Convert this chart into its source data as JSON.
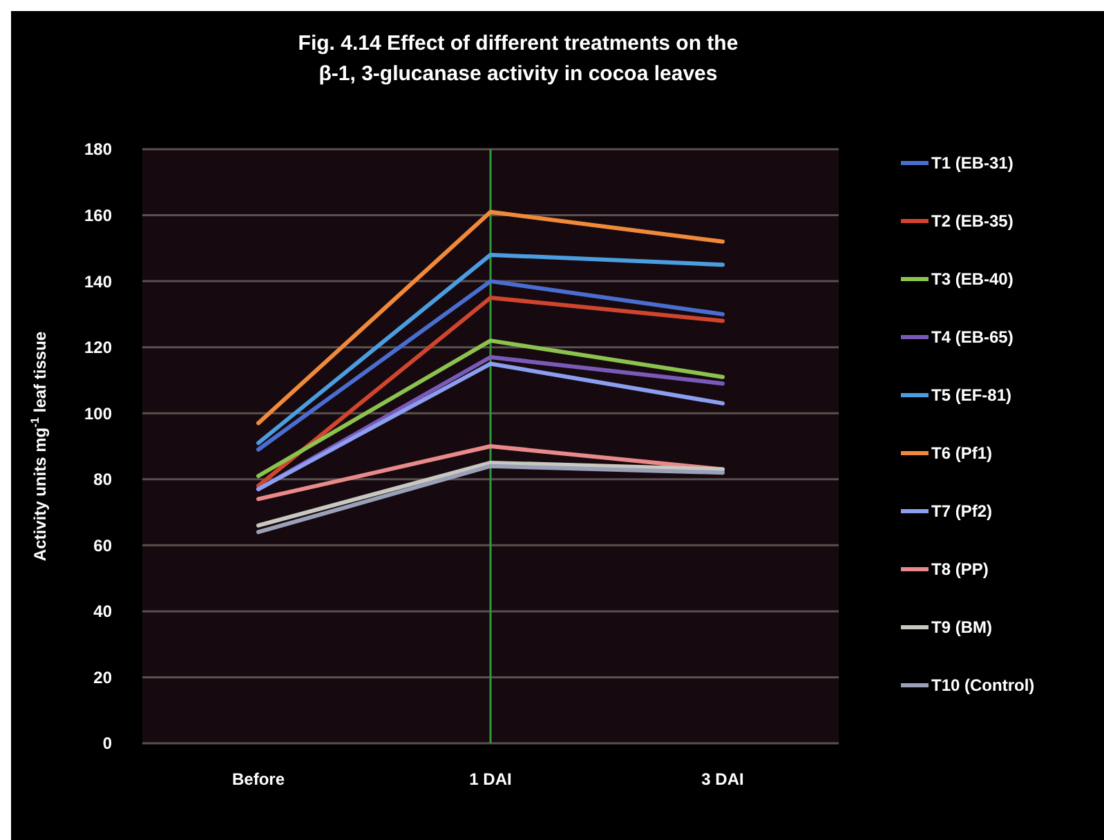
{
  "chart_data": {
    "type": "line",
    "title": "Fig. 4.14 Effect of different treatments on the β-1, 3-glucanase activity in cocoa leaves",
    "ylabel": "Activity units mg$^{-1}$ leaf tissue",
    "categories": [
      "Before",
      "1 DAI",
      "3 DAI"
    ],
    "ylim": [
      0,
      180
    ],
    "yticks": [
      0,
      20,
      40,
      60,
      80,
      100,
      120,
      140,
      160,
      180
    ],
    "grid": "y",
    "legend": "right",
    "marker": "none",
    "line_style": "solid",
    "ref_lines": [
      {
        "axis": "x",
        "value": "1 DAI",
        "color": "#2e9a3a"
      }
    ],
    "series": [
      {
        "name": "T1 (EB-31)",
        "color": "#4a6ed0",
        "values": [
          89,
          140,
          130
        ]
      },
      {
        "name": "T2 (EB-35)",
        "color": "#d0452e",
        "values": [
          78,
          135,
          128
        ]
      },
      {
        "name": "T3 (EB-40)",
        "color": "#8cc24e",
        "values": [
          81,
          122,
          111
        ]
      },
      {
        "name": "T4 (EB-65)",
        "color": "#7a5ab8",
        "values": [
          77,
          117,
          109
        ]
      },
      {
        "name": "T5 (EF-81)",
        "color": "#4a9ee0",
        "values": [
          91,
          148,
          145
        ]
      },
      {
        "name": "T6 (Pf1)",
        "color": "#f08a3a",
        "values": [
          97,
          161,
          152
        ]
      },
      {
        "name": "T7 (Pf2)",
        "color": "#8c9ef0",
        "values": [
          77,
          115,
          103
        ]
      },
      {
        "name": "T8 (PP)",
        "color": "#e88a8a",
        "values": [
          74,
          90,
          83
        ]
      },
      {
        "name": "T9 (BM)",
        "color": "#c8c8c0",
        "values": [
          66,
          85,
          83
        ]
      },
      {
        "name": "T10 (Control)",
        "color": "#9aa0b8",
        "values": [
          64,
          84,
          82
        ]
      }
    ]
  }
}
